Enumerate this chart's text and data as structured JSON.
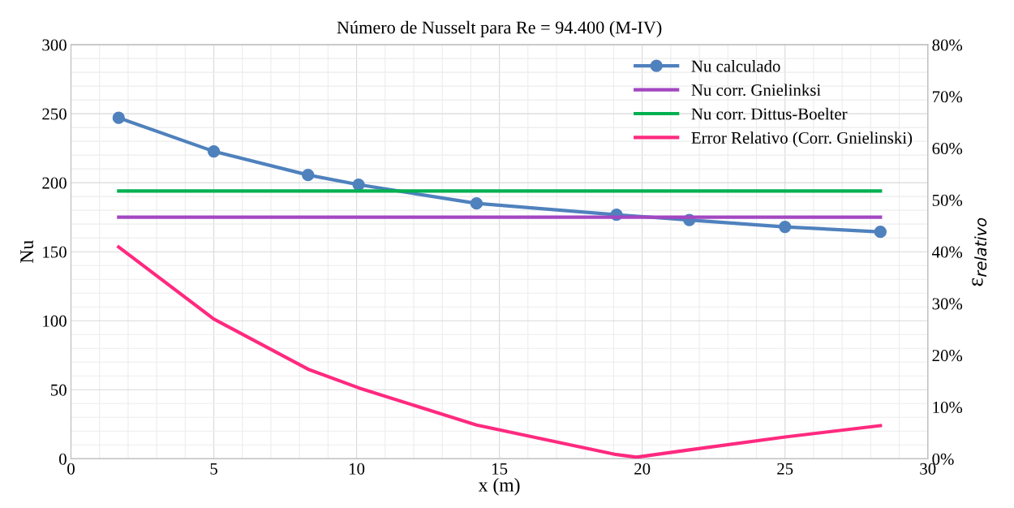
{
  "chart_data": {
    "type": "line",
    "title": "Número de Nusselt para Re = 94.400 (M-IV)",
    "xlabel": "x (m)",
    "ylabel": "Nu",
    "y2label": "ε$_{relativo}$",
    "xlim": [
      0,
      30
    ],
    "xticks": [
      0,
      5,
      10,
      15,
      20,
      25,
      30
    ],
    "ylim": [
      0,
      300
    ],
    "yticks": [
      0,
      50,
      100,
      150,
      200,
      250,
      300
    ],
    "y2lim": [
      0,
      80
    ],
    "y2ticks": [
      {
        "value": 0,
        "label": "0%"
      },
      {
        "value": 10,
        "label": "10%"
      },
      {
        "value": 20,
        "label": "20%"
      },
      {
        "value": 30,
        "label": "30%"
      },
      {
        "value": 40,
        "label": "40%"
      },
      {
        "value": 50,
        "label": "50%"
      },
      {
        "value": 60,
        "label": "60%"
      },
      {
        "value": 70,
        "label": "70%"
      },
      {
        "value": 80,
        "label": "80%"
      }
    ],
    "grid": true,
    "legend": "top right",
    "line_style": "solid",
    "series": [
      {
        "name": "Nu calculado",
        "color": "#4f81bd",
        "marker": "circle",
        "x": [
          1.67,
          5,
          8.3,
          10.07,
          14.2,
          19.1,
          21.65,
          25,
          28.34
        ],
        "values": [
          247,
          222.7,
          205.6,
          198.6,
          185,
          176.8,
          173,
          168,
          164.4
        ]
      },
      {
        "name": "Nu corr. Gnielinksi",
        "color": "#a347c1",
        "marker": "none",
        "x": [
          1.67,
          28.34
        ],
        "values": [
          175,
          175
        ]
      },
      {
        "name": "Nu corr. Dittus-Boelter",
        "color": "#00b050",
        "marker": "none",
        "x": [
          1.67,
          28.34
        ],
        "values": [
          194,
          194
        ]
      },
      {
        "name": "Error Relativo (Corr. Gnielinski)",
        "color": "#ff2a7f",
        "marker": "none",
        "axis": "y2",
        "x": [
          1.67,
          5,
          8.3,
          10.07,
          14.2,
          19.1,
          19.8,
          21.65,
          25,
          28.34
        ],
        "values": [
          40.9,
          27,
          17.3,
          13.7,
          6.5,
          0.8,
          0.3,
          1.7,
          4.2,
          6.4
        ]
      }
    ]
  }
}
